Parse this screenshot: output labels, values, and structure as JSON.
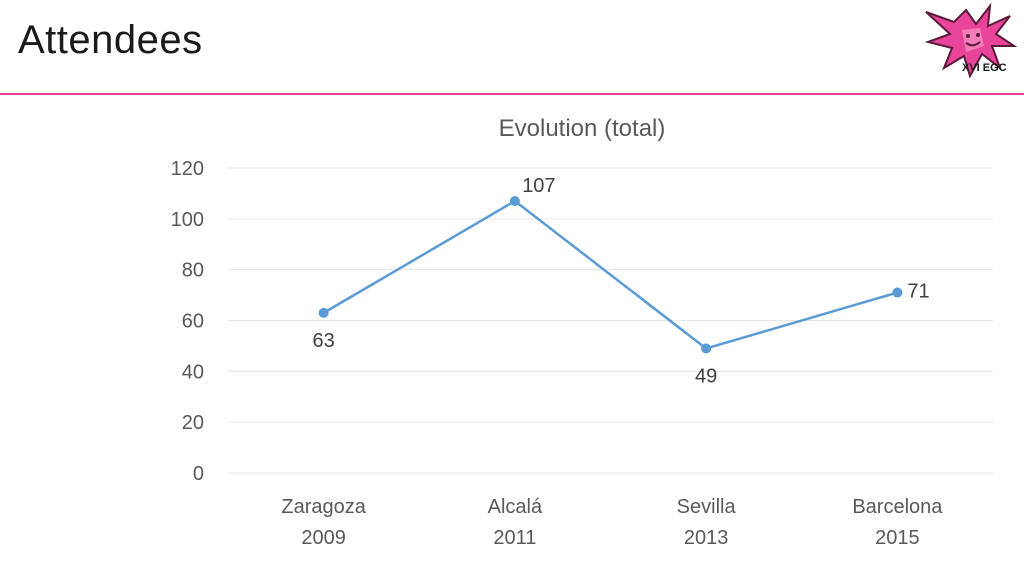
{
  "slide": {
    "title": "Attendees",
    "logo_text": "XVI EGC",
    "accent_color": "#e8449a"
  },
  "chart_data": {
    "type": "line",
    "title": "Evolution (total)",
    "categories": [
      [
        "Zaragoza",
        "2009"
      ],
      [
        "Alcalá",
        "2011"
      ],
      [
        "Sevilla",
        "2013"
      ],
      [
        "Barcelona",
        "2015"
      ]
    ],
    "series": [
      {
        "values": [
          63,
          107,
          49,
          71
        ],
        "color": "#5b9bd5"
      }
    ],
    "data_labels": [
      "63",
      "107",
      "49",
      "71"
    ],
    "data_label_positions": [
      "below",
      "above",
      "below",
      "right"
    ],
    "ylim": [
      0,
      120
    ],
    "yticks": [
      0,
      20,
      40,
      60,
      80,
      100,
      120
    ],
    "grid": true,
    "legend": "none"
  }
}
